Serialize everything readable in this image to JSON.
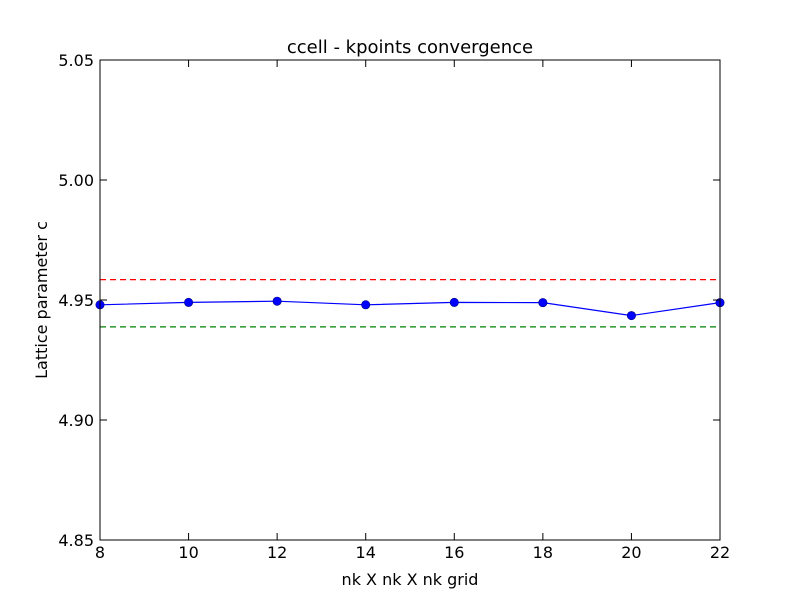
{
  "chart_data": {
    "type": "line",
    "title": "ccell - kpoints convergence",
    "xlabel": "nk X nk X nk grid",
    "ylabel": "Lattice parameter c",
    "xlim": [
      8,
      22
    ],
    "ylim": [
      4.85,
      5.05
    ],
    "x_ticks": [
      "8",
      "10",
      "12",
      "14",
      "16",
      "18",
      "20",
      "22"
    ],
    "y_ticks": [
      "4.85",
      "4.90",
      "4.95",
      "5.00",
      "5.05"
    ],
    "grid": false,
    "series": [
      {
        "x": [
          8,
          10,
          12,
          14,
          16,
          18,
          20,
          22
        ],
        "values": [
          4.948,
          4.949,
          4.9495,
          4.948,
          4.949,
          4.9489,
          4.9435,
          4.9489
        ],
        "color": "#0000ff",
        "marker": "circle"
      }
    ],
    "reference_lines": [
      {
        "y": 4.9585,
        "color": "#ff0000",
        "style": "dashed"
      },
      {
        "y": 4.9388,
        "color": "#008000",
        "style": "dashed"
      }
    ]
  }
}
